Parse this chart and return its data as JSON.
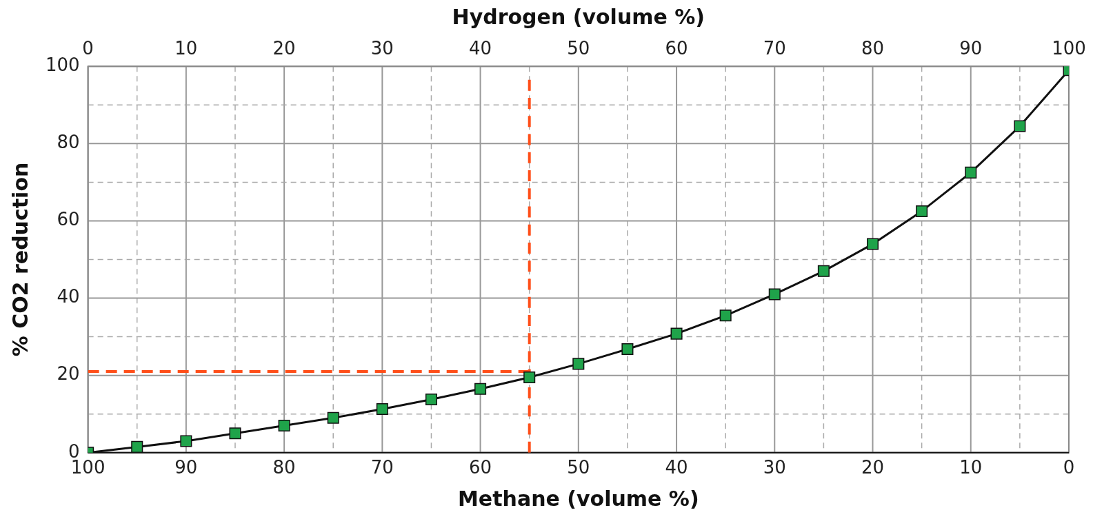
{
  "chart_data": {
    "type": "line",
    "xlabel": "Methane (volume %)",
    "x2label": "Hydrogen (volume %)",
    "ylabel": "% CO2 reduction",
    "xlim": [
      100,
      0
    ],
    "xticks": [
      100,
      {
        "value": 95,
        "label": null
      },
      90,
      {
        "value": 85,
        "label": null
      },
      80,
      {
        "value": 75,
        "label": null
      },
      70,
      {
        "value": 65,
        "label": null
      },
      60,
      {
        "value": 55,
        "label": null
      },
      50,
      {
        "value": 45,
        "label": null
      },
      40,
      {
        "value": 35,
        "label": null
      },
      30,
      {
        "value": 25,
        "label": null
      },
      20,
      {
        "value": 15,
        "label": null
      },
      10,
      {
        "value": 5,
        "label": null
      },
      0
    ],
    "x2lim": [
      0,
      100
    ],
    "x2ticks": [
      0,
      10,
      20,
      30,
      40,
      50,
      60,
      70,
      80,
      90,
      100
    ],
    "ylim": [
      0,
      100
    ],
    "yticks": [
      0,
      {
        "value": 10,
        "label": null
      },
      20,
      {
        "value": 30,
        "label": null
      },
      40,
      {
        "value": 50,
        "label": null
      },
      60,
      {
        "value": 70,
        "label": null
      },
      80,
      {
        "value": 90,
        "label": null
      },
      100
    ],
    "grid": true,
    "legend": false,
    "series": [
      {
        "color": "#1fa34a",
        "marker": "square",
        "line_style": "solid",
        "x": [
          100,
          95,
          90,
          85,
          80,
          75,
          70,
          65,
          60,
          55,
          50,
          45,
          40,
          35,
          30,
          25,
          20,
          15,
          10,
          5,
          0
        ],
        "values": [
          0,
          1.5,
          3,
          5,
          7,
          9,
          11.3,
          13.8,
          16.5,
          19.5,
          23,
          26.8,
          30.8,
          35.5,
          41,
          47,
          54,
          62.5,
          72.5,
          84.5,
          99
        ]
      },
      {
        "color": "#ff4f1a",
        "marker": "none",
        "line_style": "dashed",
        "x": [
          55,
          55
        ],
        "values": [
          0,
          96.5
        ]
      },
      {
        "color": "#ff4f1a",
        "marker": "none",
        "line_style": "dashed",
        "x": [
          100,
          55
        ],
        "values": [
          21,
          21
        ]
      }
    ]
  }
}
